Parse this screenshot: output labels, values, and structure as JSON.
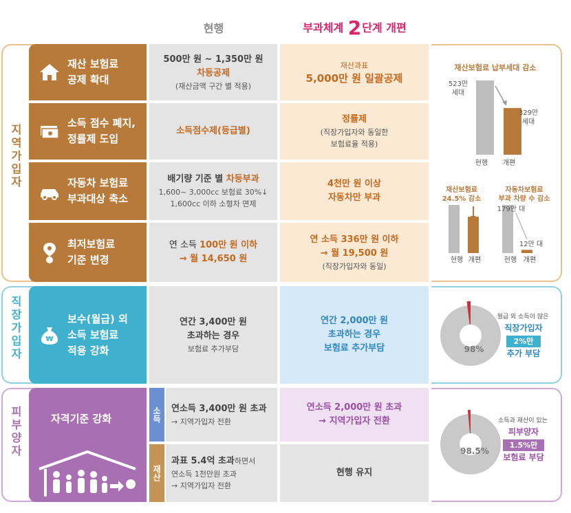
{
  "headers": {
    "current": "현행",
    "new_pre": "부과체계 ",
    "new_num": "2",
    "new_post": "단계 개편"
  },
  "groups": {
    "regional": "지역가입자",
    "employee": "직장가입자",
    "dependent": "피부양자"
  },
  "rows": [
    {
      "cat": [
        "재산 보험료",
        "공제 확대"
      ],
      "cur_a": "500만 원 ~ 1,350만 원",
      "cur_b": "차등공제",
      "cur_c": "(재산금액 구간 별 적용)",
      "new_a": "재산과표",
      "new_b": "5,000만 원 일괄공제"
    },
    {
      "cat": [
        "소득 점수 폐지,",
        "정률제 도입"
      ],
      "cur_a": "소득점수제(등급별)",
      "new_a": "정률제",
      "new_b": "(직장가입자와 동일한",
      "new_c": "보험료율 적용)"
    },
    {
      "cat": [
        "자동차 보험료",
        "부과대상 축소"
      ],
      "cur_a": "배기량 기준 별 ",
      "cur_a2": "차등부과",
      "cur_b": "1,600~ 3,000cc 보험료 30%↓",
      "cur_c": "1,600cc 이하 소형차 면제",
      "new_a": "4천만 원 이상",
      "new_b": "자동차만 부과"
    },
    {
      "cat": [
        "최저보험료",
        "기준 변경"
      ],
      "cur_a": "연 소득 ",
      "cur_a2": "100만 원 이하",
      "cur_b": "→ 월 14,650 원",
      "new_a": "연 소득 336만 원 이하",
      "new_b": "→ 월 19,500 원",
      "new_c": "(직장가입자와 동일)"
    },
    {
      "cat": [
        "보수(월급) 외",
        "소득 보험료",
        "적용 강화"
      ],
      "cur_a": "연간 3,400만 원",
      "cur_b": "초과하는 경우",
      "cur_c": "보험료 추가부담",
      "new_a": "연간 2,000만 원",
      "new_b": "초과하는 경우",
      "new_c": "보험료 추가부담"
    },
    {
      "cat": [
        "자격기준 강화"
      ],
      "tag1": "소득",
      "tag2": "재산",
      "cur1_a": "연소득 3,400만 원 초과",
      "cur1_b": "→ 지역가입자 전환",
      "cur2_a": "과표 5.4억 초과",
      "cur2_a2": "하면서",
      "cur2_b": "연소득 1천만원 초과",
      "cur2_c": "→ 지역가입자 전환",
      "new1_a": "연소득 2,000만 원 초과",
      "new1_b": "→ 지역가입자 전환",
      "new2_a": "현행 유지"
    }
  ],
  "panel_regional": {
    "title": "재산보험료 납부세대 감소",
    "bar1_label": [
      "523만",
      "세대"
    ],
    "bar2_label": [
      "329만",
      "세대"
    ],
    "x1": "현행",
    "x2": "개편",
    "sub1_title": [
      "재산보험료",
      "24.5% 감소"
    ],
    "sub2_title": [
      "자동차보험료",
      "부과 차량 수 감소"
    ],
    "sub2_v1": "179만 대",
    "sub2_v2": "12만 대",
    "sx1": "현행",
    "sx2": "개편",
    "sx3": "현행",
    "sx4": "개편"
  },
  "panel_employee": {
    "value": "98%",
    "note": "월급 외 소득이 많은",
    "l1": "직장가입자",
    "l2": "2%만",
    "l3": "추가 부담"
  },
  "panel_dependent": {
    "value": "98.5%",
    "note": "소득과 재산이 있는",
    "l1": "피부양자",
    "l2": "1.5%만",
    "l3": "보험료 부담"
  },
  "chart_data": [
    {
      "type": "bar",
      "title": "재산보험료 납부세대 감소",
      "categories": [
        "현행",
        "개편"
      ],
      "values": [
        523,
        329
      ]
    },
    {
      "type": "bar",
      "title": "재산보험료 24.5% 감소",
      "categories": [
        "현행",
        "개편"
      ],
      "values": [
        100,
        75.5
      ]
    },
    {
      "type": "bar",
      "title": "자동차보험료 부과 차량 수 감소",
      "categories": [
        "현행",
        "개편"
      ],
      "values": [
        179,
        12
      ]
    },
    {
      "type": "pie",
      "categories": [
        "",
        "직장가입자"
      ],
      "values": [
        98,
        2
      ]
    },
    {
      "type": "pie",
      "categories": [
        "",
        "피부양자"
      ],
      "values": [
        98.5,
        1.5
      ]
    }
  ],
  "colors": {
    "regional": "#b87a3b",
    "employee": "#3fb1cf",
    "dependent": "#a86fb2",
    "accent_red": "#d42c3a"
  }
}
